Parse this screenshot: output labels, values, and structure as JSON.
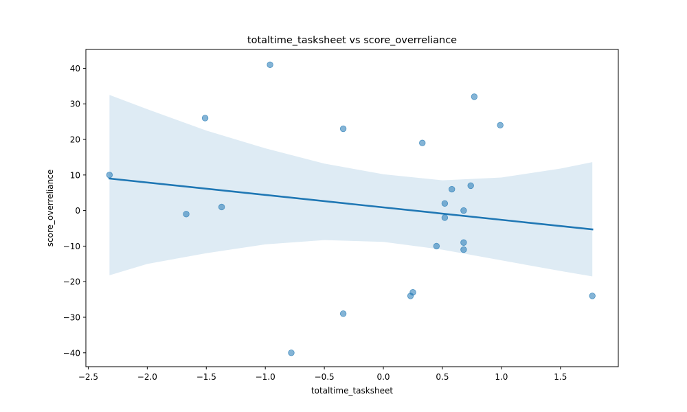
{
  "chart_data": {
    "type": "scatter",
    "title": "totaltime_tasksheet vs score_overreliance",
    "xlabel": "totaltime_tasksheet",
    "ylabel": "score_overreliance",
    "xlim": [
      -2.52,
      1.99
    ],
    "ylim": [
      -43.9,
      45.3
    ],
    "xticks": [
      -2.5,
      -2.0,
      -1.5,
      -1.0,
      -0.5,
      0.0,
      0.5,
      1.0,
      1.5
    ],
    "xtick_labels": [
      "−2.5",
      "−2.0",
      "−1.5",
      "−1.0",
      "−0.5",
      "0.0",
      "0.5",
      "1.0",
      "1.5"
    ],
    "yticks": [
      -40,
      -30,
      -20,
      -10,
      0,
      10,
      20,
      30,
      40
    ],
    "ytick_labels": [
      "−40",
      "−30",
      "−20",
      "−10",
      "0",
      "10",
      "20",
      "30",
      "40"
    ],
    "grid": false,
    "points": [
      {
        "x": -2.32,
        "y": 10
      },
      {
        "x": -1.67,
        "y": -1
      },
      {
        "x": -1.51,
        "y": 26
      },
      {
        "x": -1.37,
        "y": 1
      },
      {
        "x": -0.96,
        "y": 41
      },
      {
        "x": -0.78,
        "y": -40
      },
      {
        "x": -0.34,
        "y": 23
      },
      {
        "x": -0.34,
        "y": -29
      },
      {
        "x": 0.23,
        "y": -24
      },
      {
        "x": 0.25,
        "y": -23
      },
      {
        "x": 0.33,
        "y": 19
      },
      {
        "x": 0.45,
        "y": -10
      },
      {
        "x": 0.52,
        "y": 2
      },
      {
        "x": 0.52,
        "y": -2
      },
      {
        "x": 0.58,
        "y": 6
      },
      {
        "x": 0.68,
        "y": 0
      },
      {
        "x": 0.68,
        "y": -9
      },
      {
        "x": 0.68,
        "y": -11
      },
      {
        "x": 0.74,
        "y": 7
      },
      {
        "x": 0.77,
        "y": 32
      },
      {
        "x": 0.99,
        "y": 24
      },
      {
        "x": 1.77,
        "y": -24
      }
    ],
    "regression_line": {
      "x": [
        -2.32,
        1.77
      ],
      "y": [
        9.0,
        -5.3
      ]
    },
    "confidence_band": {
      "x": [
        -2.32,
        -2.0,
        -1.5,
        -1.0,
        -0.5,
        0.0,
        0.5,
        1.0,
        1.5,
        1.77
      ],
      "upper": [
        32.5,
        28.5,
        22.5,
        17.5,
        13.2,
        10.2,
        8.5,
        9.3,
        11.8,
        13.6
      ],
      "lower": [
        -18.2,
        -15.0,
        -12.0,
        -9.5,
        -8.3,
        -8.8,
        -11.0,
        -14.0,
        -17.0,
        -18.5
      ]
    },
    "colors": {
      "points": "#1f77b4",
      "line": "#1f77b4",
      "band": "#1f77b4",
      "axes": "#000000"
    }
  }
}
